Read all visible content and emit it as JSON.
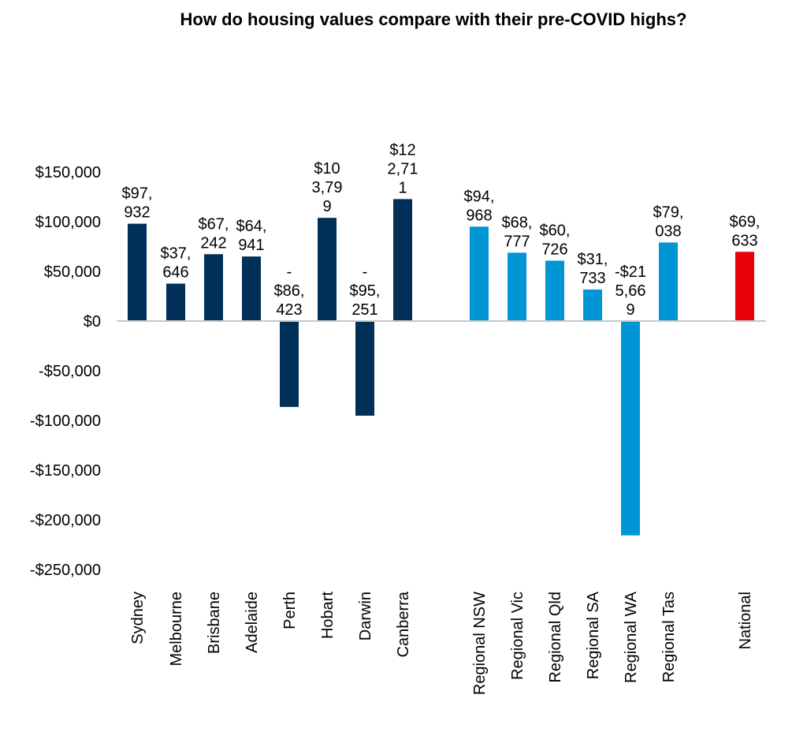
{
  "chart_data": {
    "type": "bar",
    "title": "How do housing values compare with their pre-COVID highs?",
    "xlabel": "",
    "ylabel": "",
    "ylim": [
      -250000,
      150000
    ],
    "yticks": [
      150000,
      100000,
      50000,
      0,
      -50000,
      -100000,
      -150000,
      -200000,
      -250000
    ],
    "ytick_labels": [
      "$150,000",
      "$100,000",
      "$50,000",
      "$0",
      "-$50,000",
      "-$100,000",
      "-$150,000",
      "-$200,000",
      "-$250,000"
    ],
    "grid": false,
    "legend": "none",
    "colors": {
      "capital": "#003057",
      "regional": "#0096D6",
      "national": "#E8000B",
      "axis": "#C8C8C8"
    },
    "categories": [
      "Sydney",
      "Melbourne",
      "Brisbane",
      "Adelaide",
      "Perth",
      "Hobart",
      "Darwin",
      "Canberra",
      "Regional NSW",
      "Regional Vic",
      "Regional Qld",
      "Regional SA",
      "Regional WA",
      "Regional Tas",
      "National"
    ],
    "groups": [
      "capital",
      "capital",
      "capital",
      "capital",
      "capital",
      "capital",
      "capital",
      "capital",
      "regional",
      "regional",
      "regional",
      "regional",
      "regional",
      "regional",
      "national"
    ],
    "values": [
      97932,
      37646,
      67242,
      64941,
      -86423,
      103799,
      -95251,
      122711,
      94968,
      68777,
      60726,
      31733,
      -215669,
      79038,
      69633
    ],
    "data_labels": [
      [
        "$97,",
        "932"
      ],
      [
        "$37,",
        "646"
      ],
      [
        "$67,",
        "242"
      ],
      [
        "$64,",
        "941"
      ],
      [
        "-",
        "$86,",
        "423"
      ],
      [
        "$10",
        "3,79",
        "9"
      ],
      [
        "-",
        "$95,",
        "251"
      ],
      [
        "$12",
        "2,71",
        "1"
      ],
      [
        "$94,",
        "968"
      ],
      [
        "$68,",
        "777"
      ],
      [
        "$60,",
        "726"
      ],
      [
        "$31,",
        "733"
      ],
      [
        "-$21",
        "5,66",
        "9"
      ],
      [
        "$79,",
        "038"
      ],
      [
        "$69,",
        "633"
      ]
    ]
  }
}
